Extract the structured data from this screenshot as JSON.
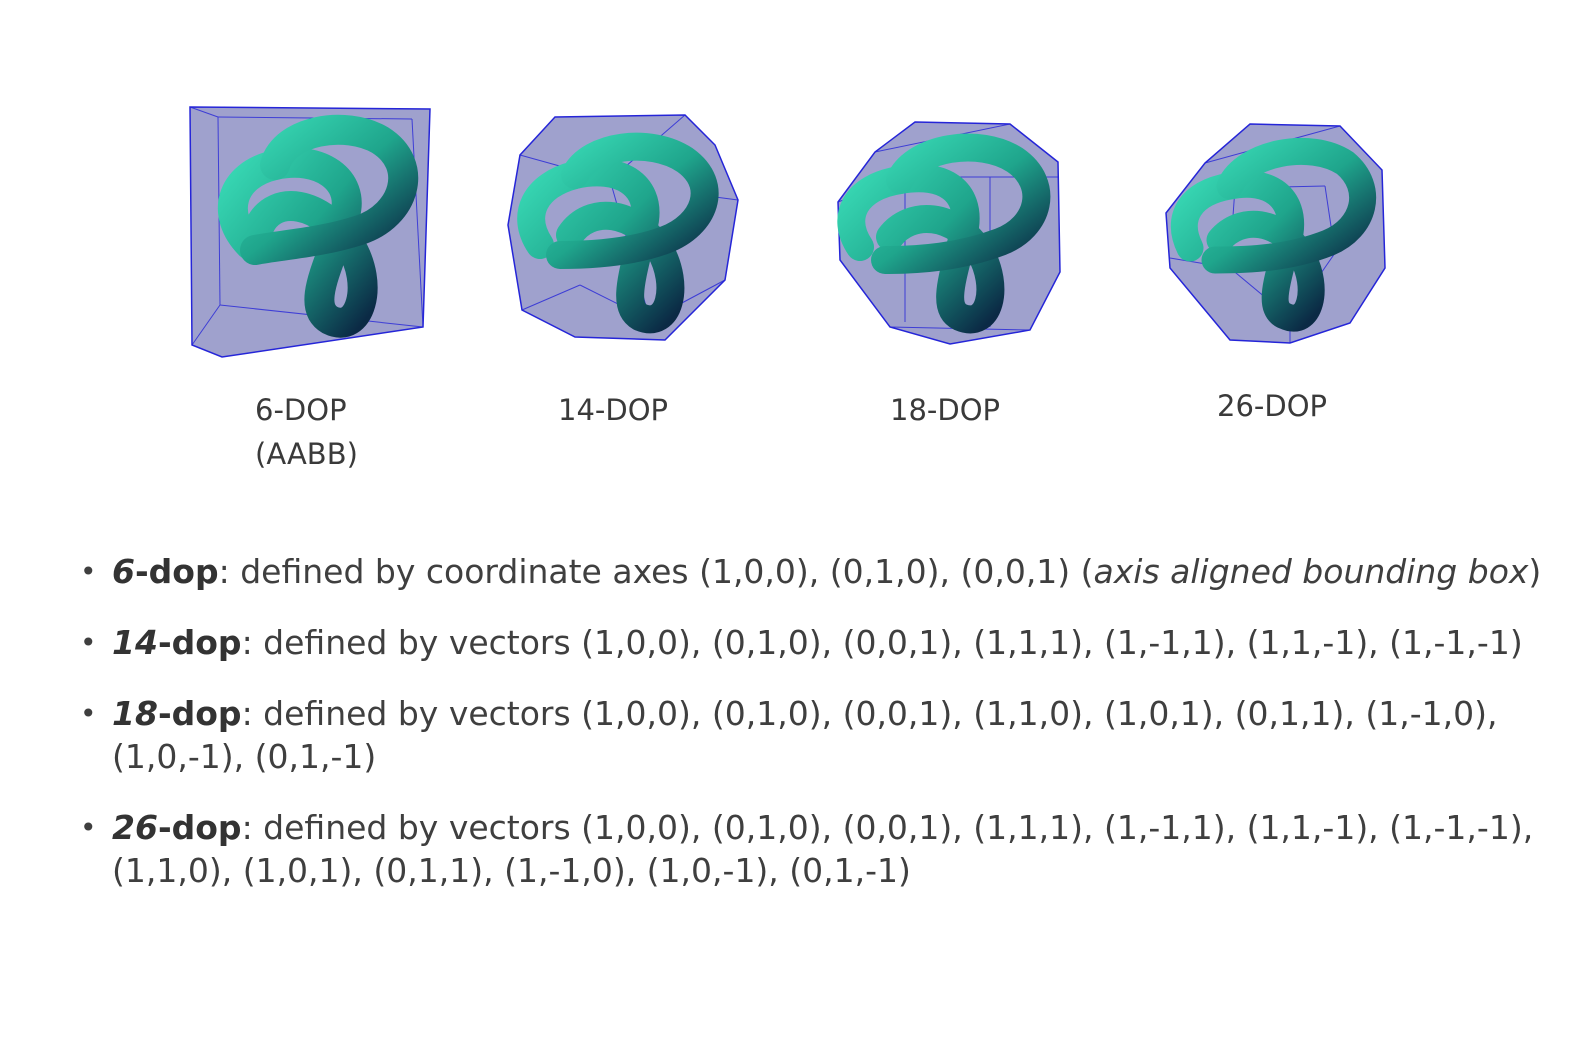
{
  "figures": [
    {
      "id": "6dop",
      "caption_line1": "6-DOP",
      "caption_line2": "(AABB)"
    },
    {
      "id": "14dop",
      "caption_line1": "14-DOP",
      "caption_line2": ""
    },
    {
      "id": "18dop",
      "caption_line1": "18-DOP",
      "caption_line2": ""
    },
    {
      "id": "26dop",
      "caption_line1": "26-DOP",
      "caption_line2": ""
    }
  ],
  "colors": {
    "hull_fill": "#8e90c4",
    "hull_edge": "#2525d8",
    "knot_main": "#1fa58c",
    "knot_dark": "#0b2a45",
    "knot_light": "#38d8b4"
  },
  "bullets": [
    {
      "marker": "•",
      "term_num": "6",
      "term_suffix": "-dop",
      "text": ": defined by coordinate axes (1,0,0), (0,1,0), (0,0,1) (",
      "italic": "axis aligned bounding box",
      "tail": ")"
    },
    {
      "marker": "•",
      "term_num": "14",
      "term_suffix": "-dop",
      "text": ": defined by vectors (1,0,0), (0,1,0), (0,0,1), (1,1,1), (1,-1,1), (1,1,-1), (1,-1,-1)",
      "italic": "",
      "tail": ""
    },
    {
      "marker": "•",
      "term_num": "18",
      "term_suffix": "-dop",
      "text": ": defined by vectors (1,0,0), (0,1,0), (0,0,1), (1,1,0), (1,0,1), (0,1,1), (1,-1,0), (1,0,-1), (0,1,-1)",
      "italic": "",
      "tail": ""
    },
    {
      "marker": "•",
      "term_num": "26",
      "term_suffix": "-dop",
      "text": ": defined by vectors (1,0,0), (0,1,0), (0,0,1), (1,1,1), (1,-1,1), (1,1,-1), (1,-1,-1), (1,1,0), (1,0,1), (0,1,1), (1,-1,0), (1,0,-1), (0,1,-1)",
      "italic": "",
      "tail": ""
    }
  ]
}
